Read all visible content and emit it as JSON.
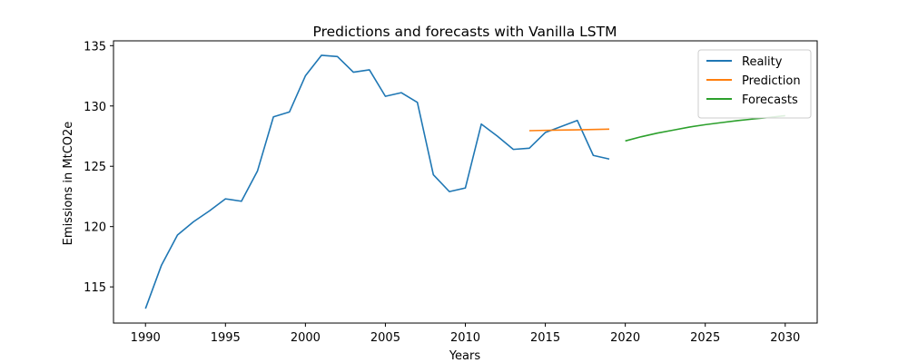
{
  "chart_data": {
    "type": "line",
    "title": "Predictions and forecasts with Vanilla LSTM",
    "xlabel": "Years",
    "ylabel": "Emissions in MtCO2e",
    "xlim": [
      1988.0,
      2032.0
    ],
    "ylim": [
      112.0,
      135.4
    ],
    "xticks": [
      1990,
      1995,
      2000,
      2005,
      2010,
      2015,
      2020,
      2025,
      2030
    ],
    "yticks": [
      115,
      120,
      125,
      130,
      135
    ],
    "grid": false,
    "legend_position": "top-right",
    "series": [
      {
        "name": "Reality",
        "color": "#1f77b4",
        "x": [
          1990,
          1991,
          1992,
          1993,
          1994,
          1995,
          1996,
          1997,
          1998,
          1999,
          2000,
          2001,
          2002,
          2003,
          2004,
          2005,
          2006,
          2007,
          2008,
          2009,
          2010,
          2011,
          2012,
          2013,
          2014,
          2015,
          2016,
          2017,
          2018,
          2019
        ],
        "y": [
          113.2,
          116.8,
          119.3,
          120.4,
          121.3,
          122.3,
          122.1,
          124.6,
          129.1,
          129.5,
          132.5,
          134.2,
          134.1,
          132.8,
          133.0,
          130.8,
          131.1,
          130.3,
          124.3,
          122.9,
          123.2,
          128.5,
          127.5,
          126.4,
          126.5,
          127.8,
          128.3,
          128.8,
          125.9,
          125.6
        ]
      },
      {
        "name": "Prediction",
        "color": "#ff7f0e",
        "x": [
          2014,
          2015,
          2016,
          2017,
          2018,
          2019
        ],
        "y": [
          127.95,
          127.98,
          128.0,
          128.02,
          128.05,
          128.08
        ]
      },
      {
        "name": "Forecasts",
        "color": "#2ca02c",
        "x": [
          2020,
          2021,
          2022,
          2023,
          2024,
          2025,
          2026,
          2027,
          2028,
          2029,
          2030
        ],
        "y": [
          127.1,
          127.45,
          127.75,
          128.0,
          128.25,
          128.45,
          128.62,
          128.78,
          128.92,
          129.05,
          129.2
        ]
      }
    ]
  }
}
